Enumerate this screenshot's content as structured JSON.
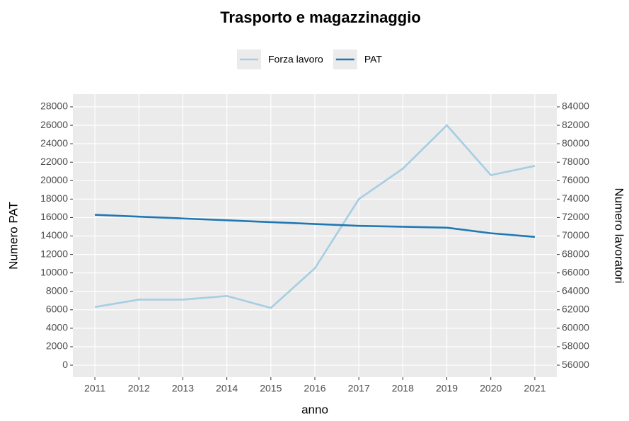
{
  "chart_data": {
    "type": "line",
    "title": "Trasporto e magazzinaggio",
    "x_label": "anno",
    "y_label": "Numero PAT",
    "y2_label": "Numero lavoratori",
    "categories": [
      "2011",
      "2012",
      "2013",
      "2014",
      "2015",
      "2016",
      "2017",
      "2018",
      "2019",
      "2020",
      "2021"
    ],
    "series": [
      {
        "name": "Forza lavoro",
        "color": "#a6cee3",
        "axis": "y2",
        "values": [
          62300,
          63100,
          63100,
          63500,
          62200,
          66500,
          74000,
          77300,
          82000,
          76600,
          77600
        ]
      },
      {
        "name": "PAT",
        "color": "#1f78b4",
        "axis": "y",
        "values": [
          16300,
          16100,
          15900,
          15700,
          15500,
          15300,
          15100,
          15000,
          14900,
          14300,
          13900
        ]
      }
    ],
    "ylim": [
      -1300,
      29380
    ],
    "yticks": [
      0,
      2000,
      4000,
      6000,
      8000,
      10000,
      12000,
      14000,
      16000,
      18000,
      20000,
      22000,
      24000,
      26000,
      28000
    ],
    "y2lim": [
      54700,
      85380
    ],
    "y2ticks": [
      56000,
      58000,
      60000,
      62000,
      64000,
      66000,
      68000,
      70000,
      72000,
      74000,
      76000,
      78000,
      80000,
      82000,
      84000
    ],
    "grid": true,
    "legend": "top"
  }
}
